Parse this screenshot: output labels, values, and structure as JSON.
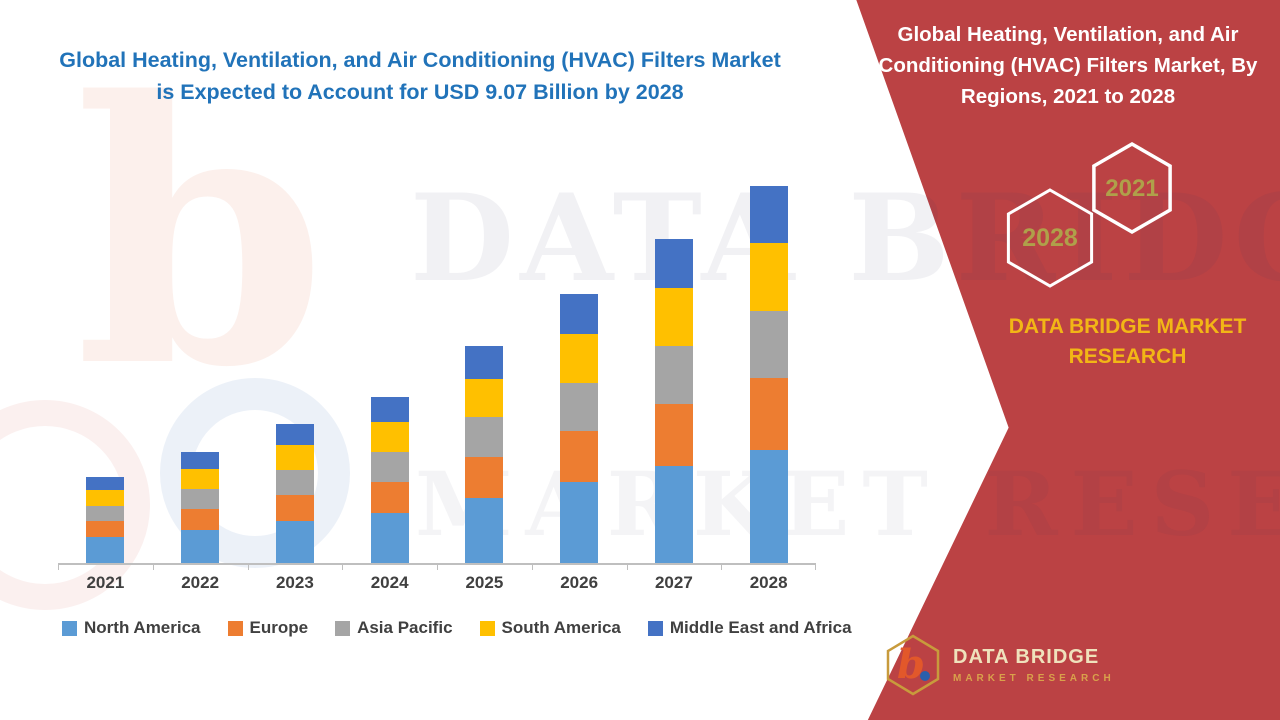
{
  "header": {
    "title": "Global Heating, Ventilation, and Air Conditioning (HVAC) Filters Market is Expected to Account for USD 9.07 Billion by 2028"
  },
  "chart_data": {
    "type": "stacked-bar",
    "title": "Global Heating, Ventilation, and Air Conditioning (HVAC) Filters Market, By Regions, 2021 to 2028",
    "unit": "USD Billion",
    "categories": [
      "2021",
      "2022",
      "2023",
      "2024",
      "2025",
      "2026",
      "2027",
      "2028"
    ],
    "series": [
      {
        "name": "North America",
        "color": "#5B9BD5",
        "values": [
          0.62,
          0.8,
          1.0,
          1.2,
          1.57,
          1.94,
          2.34,
          2.72
        ]
      },
      {
        "name": "Europe",
        "color": "#ED7D31",
        "values": [
          0.39,
          0.51,
          0.64,
          0.76,
          0.99,
          1.23,
          1.48,
          1.72
        ]
      },
      {
        "name": "Asia Pacific",
        "color": "#A5A5A5",
        "values": [
          0.37,
          0.48,
          0.6,
          0.72,
          0.94,
          1.17,
          1.4,
          1.63
        ]
      },
      {
        "name": "South America",
        "color": "#FFC000",
        "values": [
          0.37,
          0.48,
          0.6,
          0.71,
          0.93,
          1.16,
          1.39,
          1.62
        ]
      },
      {
        "name": "Middle East and Africa",
        "color": "#4472C4",
        "values": [
          0.32,
          0.41,
          0.51,
          0.6,
          0.79,
          0.98,
          1.18,
          1.38
        ]
      }
    ],
    "totals": [
      2.07,
      2.68,
      3.35,
      3.99,
      5.22,
      6.48,
      7.79,
      9.07
    ],
    "ylim": [
      0,
      9.5
    ],
    "grid": false,
    "legend_position": "bottom"
  },
  "watermark": {
    "line1": "DATA BRIDGE",
    "line2": "MARKET RESEARCH",
    "logo_letter": "b"
  },
  "right_panel": {
    "title": "Global Heating, Ventilation, and Air Conditioning (HVAC) Filters Market, By Regions, 2021 to 2028",
    "hexagons": [
      {
        "label": "2028"
      },
      {
        "label": "2021"
      }
    ],
    "brand": "DATA BRIDGE MARKET RESEARCH",
    "logo": {
      "letter": "b",
      "title": "DATA BRIDGE",
      "subtitle": "MARKET RESEARCH"
    }
  },
  "colors": {
    "panel_red": "#BB4244",
    "title_blue": "#2173B9",
    "brand_gold": "#F2B616",
    "hex_year_gold": "#AFA04A",
    "axis_text": "#404040"
  }
}
